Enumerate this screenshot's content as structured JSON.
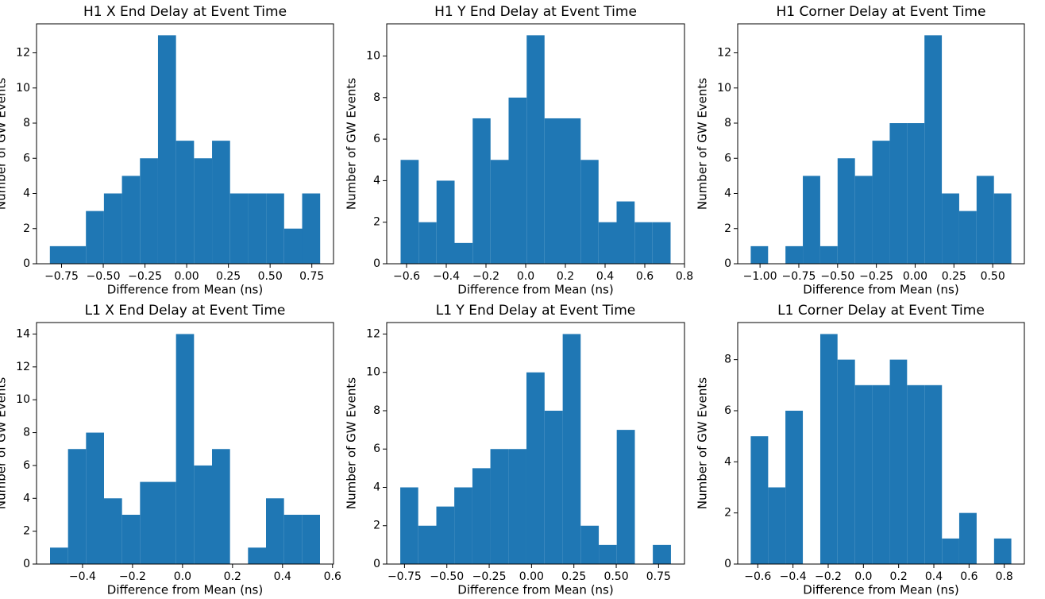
{
  "chart_data": [
    {
      "type": "histogram",
      "title": "H1 X End Delay at Event Time",
      "x_label": "Difference from Mean (ns)",
      "y_label": "Number of GW Events",
      "color": "#1f77b4",
      "bins": [
        -0.82,
        -0.712,
        -0.604,
        -0.496,
        -0.388,
        -0.28,
        -0.172,
        -0.064,
        0.044,
        0.152,
        0.26,
        0.368,
        0.476,
        0.584,
        0.692,
        0.8
      ],
      "counts": [
        1,
        1,
        3,
        4,
        5,
        6,
        13,
        7,
        6,
        7,
        4,
        4,
        4,
        2,
        4
      ],
      "xlim": [
        -0.9,
        0.88
      ],
      "ylim": [
        0,
        13.65
      ],
      "xticks": [
        {
          "value": -0.75,
          "label": "−0.75"
        },
        {
          "value": -0.5,
          "label": "−0.50"
        },
        {
          "value": -0.25,
          "label": "−0.25"
        },
        {
          "value": 0,
          "label": "0.00"
        },
        {
          "value": 0.25,
          "label": "0.25"
        },
        {
          "value": 0.5,
          "label": "0.50"
        },
        {
          "value": 0.75,
          "label": "0.75"
        }
      ],
      "yticks": [
        0,
        2,
        4,
        6,
        8,
        10,
        12
      ]
    },
    {
      "type": "histogram",
      "title": "H1 Y End Delay at Event Time",
      "x_label": "Difference from Mean (ns)",
      "y_label": "Number of GW Events",
      "color": "#1f77b4",
      "bins": [
        -0.63,
        -0.539,
        -0.449,
        -0.358,
        -0.267,
        -0.177,
        -0.086,
        0.005,
        0.095,
        0.186,
        0.277,
        0.367,
        0.458,
        0.549,
        0.639,
        0.73
      ],
      "counts": [
        5,
        2,
        4,
        1,
        7,
        5,
        8,
        11,
        7,
        7,
        5,
        2,
        3,
        2,
        2
      ],
      "xlim": [
        -0.7,
        0.8
      ],
      "ylim": [
        0,
        11.55
      ],
      "xticks": [
        {
          "value": -0.6,
          "label": "−0.6"
        },
        {
          "value": -0.4,
          "label": "−0.4"
        },
        {
          "value": -0.2,
          "label": "−0.2"
        },
        {
          "value": 0,
          "label": "0.0"
        },
        0.2,
        0.4,
        0.6,
        0.8
      ],
      "yticks": [
        0,
        2,
        4,
        6,
        8,
        10
      ]
    },
    {
      "type": "histogram",
      "title": "H1 Corner Delay at Event Time",
      "x_label": "Difference from Mean (ns)",
      "y_label": "Number of GW Events",
      "color": "#1f77b4",
      "bins": [
        -1.06,
        -0.948,
        -0.836,
        -0.724,
        -0.612,
        -0.5,
        -0.388,
        -0.276,
        -0.164,
        -0.052,
        0.06,
        0.172,
        0.284,
        0.396,
        0.508,
        0.62
      ],
      "counts": [
        1,
        0,
        1,
        5,
        1,
        6,
        5,
        7,
        8,
        8,
        13,
        4,
        3,
        5,
        4
      ],
      "xlim": [
        -1.144,
        0.704
      ],
      "ylim": [
        0,
        13.65
      ],
      "xticks": [
        {
          "value": -1,
          "label": "−1.00"
        },
        {
          "value": -0.75,
          "label": "−0.75"
        },
        {
          "value": -0.5,
          "label": "−0.50"
        },
        {
          "value": -0.25,
          "label": "−0.25"
        },
        {
          "value": 0,
          "label": "0.00"
        },
        0.25,
        {
          "value": 0.5,
          "label": "0.50"
        }
      ],
      "yticks": [
        0,
        2,
        4,
        6,
        8,
        10,
        12
      ]
    },
    {
      "type": "histogram",
      "title": "L1 X End Delay at Event Time",
      "x_label": "Difference from Mean (ns)",
      "y_label": "Number of GW Events",
      "color": "#1f77b4",
      "bins": [
        -0.53,
        -0.458,
        -0.386,
        -0.314,
        -0.242,
        -0.17,
        -0.098,
        -0.026,
        0.046,
        0.118,
        0.19,
        0.262,
        0.334,
        0.406,
        0.478,
        0.55
      ],
      "counts": [
        1,
        7,
        8,
        4,
        3,
        5,
        5,
        14,
        6,
        7,
        0,
        1,
        4,
        3,
        3
      ],
      "xlim": [
        -0.584,
        0.604
      ],
      "ylim": [
        0,
        14.7
      ],
      "xticks": [
        {
          "value": -0.4,
          "label": "−0.4"
        },
        {
          "value": -0.2,
          "label": "−0.2"
        },
        {
          "value": 0,
          "label": "0.0"
        },
        0.2,
        0.4,
        0.6
      ],
      "yticks": [
        0,
        2,
        4,
        6,
        8,
        10,
        12,
        14
      ]
    },
    {
      "type": "histogram",
      "title": "L1 Y End Delay at Event Time",
      "x_label": "Difference from Mean (ns)",
      "y_label": "Number of GW Events",
      "color": "#1f77b4",
      "bins": [
        -0.775,
        -0.669,
        -0.562,
        -0.456,
        -0.349,
        -0.243,
        -0.136,
        -0.03,
        0.077,
        0.184,
        0.29,
        0.397,
        0.503,
        0.61,
        0.716,
        0.823
      ],
      "counts": [
        4,
        2,
        3,
        4,
        5,
        6,
        6,
        10,
        8,
        12,
        2,
        1,
        7,
        0,
        1
      ],
      "xlim": [
        -0.855,
        0.903
      ],
      "ylim": [
        0,
        12.6
      ],
      "xticks": [
        {
          "value": -0.75,
          "label": "−0.75"
        },
        {
          "value": -0.5,
          "label": "−0.50"
        },
        {
          "value": -0.25,
          "label": "−0.25"
        },
        {
          "value": 0,
          "label": "0.00"
        },
        0.25,
        {
          "value": 0.5,
          "label": "0.50"
        },
        0.75
      ],
      "yticks": [
        0,
        2,
        4,
        6,
        8,
        10,
        12
      ]
    },
    {
      "type": "histogram",
      "title": "L1 Corner Delay at Event Time",
      "x_label": "Difference from Mean (ns)",
      "y_label": "Number of GW Events",
      "color": "#1f77b4",
      "bins": [
        -0.64,
        -0.541,
        -0.443,
        -0.344,
        -0.245,
        -0.147,
        -0.048,
        0.051,
        0.15,
        0.248,
        0.347,
        0.446,
        0.544,
        0.643,
        0.742,
        0.84
      ],
      "counts": [
        5,
        3,
        6,
        0,
        9,
        8,
        7,
        7,
        8,
        7,
        7,
        1,
        2,
        0,
        1
      ],
      "xlim": [
        -0.714,
        0.914
      ],
      "ylim": [
        0,
        9.45
      ],
      "xticks": [
        {
          "value": -0.6,
          "label": "−0.6"
        },
        {
          "value": -0.4,
          "label": "−0.4"
        },
        {
          "value": -0.2,
          "label": "−0.2"
        },
        {
          "value": 0,
          "label": "0.0"
        },
        0.2,
        0.4,
        0.6,
        0.8
      ],
      "yticks": [
        0,
        2,
        4,
        6,
        8
      ]
    }
  ]
}
